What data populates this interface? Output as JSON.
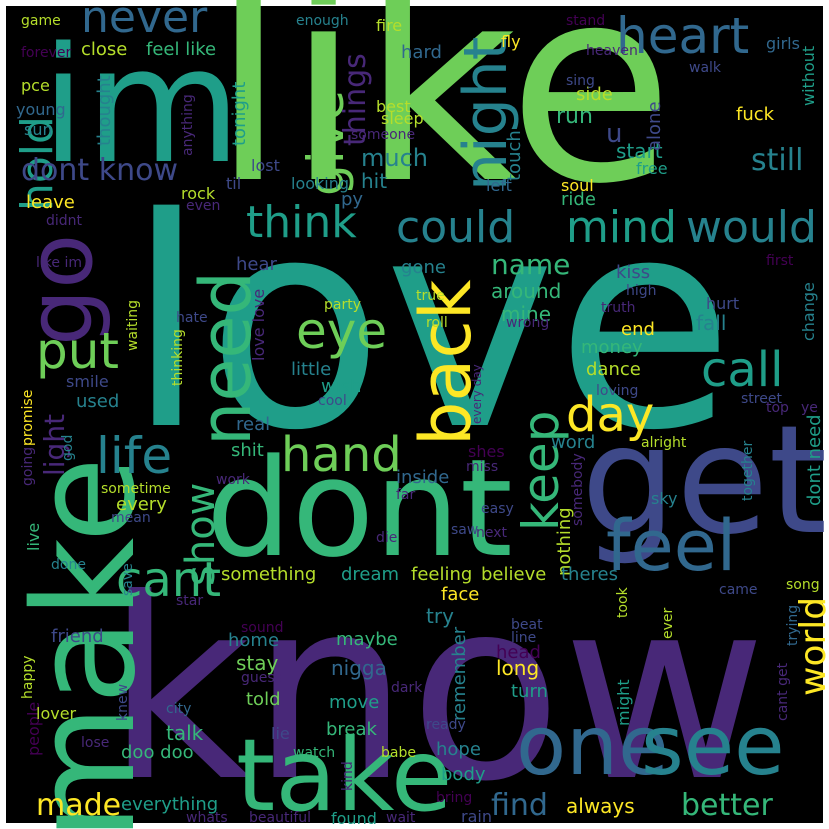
{
  "palette": {
    "background": "#000000",
    "frame": "#ffffff",
    "yellow": "#fde725",
    "lime": "#b5de2b",
    "green": "#6ece58",
    "sea": "#35b779",
    "teal": "#1f9e89",
    "cyan": "#26828e",
    "blue": "#31688e",
    "indigo": "#3e4989",
    "purple": "#482878",
    "dark": "#440154"
  },
  "words": [
    {
      "text": "love",
      "color": "teal"
    },
    {
      "text": "like",
      "color": "green"
    },
    {
      "text": "know",
      "color": "purple"
    },
    {
      "text": "im",
      "color": "teal"
    },
    {
      "text": "dont",
      "color": "sea"
    },
    {
      "text": "get",
      "color": "indigo"
    },
    {
      "text": "make",
      "color": "sea"
    },
    {
      "text": "take",
      "color": "sea"
    },
    {
      "text": "one",
      "color": "blue"
    },
    {
      "text": "see",
      "color": "cyan"
    },
    {
      "text": "need",
      "color": "sea"
    },
    {
      "text": "go",
      "color": "purple"
    },
    {
      "text": "feel",
      "color": "blue"
    },
    {
      "text": "back",
      "color": "yellow"
    },
    {
      "text": "heart",
      "color": "blue"
    },
    {
      "text": "never",
      "color": "blue"
    },
    {
      "text": "give",
      "color": "green"
    },
    {
      "text": "night",
      "color": "cyan"
    },
    {
      "text": "think",
      "color": "teal"
    },
    {
      "text": "could",
      "color": "cyan"
    },
    {
      "text": "mind",
      "color": "teal"
    },
    {
      "text": "would",
      "color": "cyan"
    },
    {
      "text": "hold",
      "color": "teal"
    },
    {
      "text": "put",
      "color": "green"
    },
    {
      "text": "eye",
      "color": "green"
    },
    {
      "text": "life",
      "color": "cyan"
    },
    {
      "text": "hand",
      "color": "green"
    },
    {
      "text": "keep",
      "color": "sea"
    },
    {
      "text": "call",
      "color": "teal"
    },
    {
      "text": "day",
      "color": "yellow"
    },
    {
      "text": "cant",
      "color": "sea"
    },
    {
      "text": "show",
      "color": "sea"
    },
    {
      "text": "world",
      "color": "yellow"
    },
    {
      "text": "things",
      "color": "purple"
    },
    {
      "text": "dont know",
      "color": "indigo"
    },
    {
      "text": "still",
      "color": "cyan"
    },
    {
      "text": "better",
      "color": "sea"
    },
    {
      "text": "find",
      "color": "blue"
    },
    {
      "text": "made",
      "color": "yellow"
    },
    {
      "text": "light",
      "color": "purple"
    },
    {
      "text": "name",
      "color": "sea"
    },
    {
      "text": "much",
      "color": "cyan"
    },
    {
      "text": "hit",
      "color": "cyan"
    },
    {
      "text": "u",
      "color": "indigo"
    },
    {
      "text": "close",
      "color": "lime"
    },
    {
      "text": "feel like",
      "color": "sea"
    },
    {
      "text": "hard",
      "color": "blue"
    },
    {
      "text": "side",
      "color": "lime"
    },
    {
      "text": "run",
      "color": "sea"
    },
    {
      "text": "leave",
      "color": "yellow"
    },
    {
      "text": "touch",
      "color": "cyan"
    },
    {
      "text": "start",
      "color": "teal"
    },
    {
      "text": "ride",
      "color": "sea"
    },
    {
      "text": "free",
      "color": "teal"
    },
    {
      "text": "soul",
      "color": "yellow"
    },
    {
      "text": "left",
      "color": "blue"
    },
    {
      "text": "py",
      "color": "blue"
    },
    {
      "text": "thought",
      "color": "cyan"
    },
    {
      "text": "tonight",
      "color": "teal"
    },
    {
      "text": "alone",
      "color": "indigo"
    },
    {
      "text": "fuck",
      "color": "yellow"
    },
    {
      "text": "best",
      "color": "lime"
    },
    {
      "text": "sleep",
      "color": "lime"
    },
    {
      "text": "someone",
      "color": "purple"
    },
    {
      "text": "pce",
      "color": "lime"
    },
    {
      "text": "young",
      "color": "blue"
    },
    {
      "text": "sun",
      "color": "cyan"
    },
    {
      "text": "anything",
      "color": "purple"
    },
    {
      "text": "lost",
      "color": "indigo"
    },
    {
      "text": "til",
      "color": "indigo"
    },
    {
      "text": "looking",
      "color": "cyan"
    },
    {
      "text": "rock",
      "color": "lime"
    },
    {
      "text": "even",
      "color": "purple"
    },
    {
      "text": "didnt",
      "color": "purple"
    },
    {
      "text": "game",
      "color": "lime"
    },
    {
      "text": "forever",
      "color": "dark"
    },
    {
      "text": "enough",
      "color": "cyan"
    },
    {
      "text": "fire",
      "color": "lime"
    },
    {
      "text": "fly",
      "color": "yellow"
    },
    {
      "text": "stand",
      "color": "dark"
    },
    {
      "text": "heaven",
      "color": "purple"
    },
    {
      "text": "sing",
      "color": "indigo"
    },
    {
      "text": "walk",
      "color": "indigo"
    },
    {
      "text": "girls",
      "color": "blue"
    },
    {
      "text": "without",
      "color": "teal"
    },
    {
      "text": "ye",
      "color": "purple"
    },
    {
      "text": "hear",
      "color": "indigo"
    },
    {
      "text": "gone",
      "color": "cyan"
    },
    {
      "text": "around",
      "color": "sea"
    },
    {
      "text": "mine",
      "color": "sea"
    },
    {
      "text": "kiss",
      "color": "indigo"
    },
    {
      "text": "high",
      "color": "indigo"
    },
    {
      "text": "first",
      "color": "dark"
    },
    {
      "text": "change",
      "color": "cyan"
    },
    {
      "text": "hurt",
      "color": "indigo"
    },
    {
      "text": "truth",
      "color": "purple"
    },
    {
      "text": "fall",
      "color": "cyan"
    },
    {
      "text": "end",
      "color": "yellow"
    },
    {
      "text": "money",
      "color": "sea"
    },
    {
      "text": "dance",
      "color": "lime"
    },
    {
      "text": "true",
      "color": "lime"
    },
    {
      "text": "roll",
      "color": "lime"
    },
    {
      "text": "wrong",
      "color": "purple"
    },
    {
      "text": "party",
      "color": "lime"
    },
    {
      "text": "love love",
      "color": "purple"
    },
    {
      "text": "little",
      "color": "cyan"
    },
    {
      "text": "wish",
      "color": "teal"
    },
    {
      "text": "smile",
      "color": "indigo"
    },
    {
      "text": "used",
      "color": "cyan"
    },
    {
      "text": "real",
      "color": "blue"
    },
    {
      "text": "shit",
      "color": "sea"
    },
    {
      "text": "cool",
      "color": "indigo"
    },
    {
      "text": "every day",
      "color": "purple"
    },
    {
      "text": "loving",
      "color": "indigo"
    },
    {
      "text": "street",
      "color": "indigo"
    },
    {
      "text": "top",
      "color": "purple"
    },
    {
      "text": "alright",
      "color": "lime"
    },
    {
      "text": "word",
      "color": "cyan"
    },
    {
      "text": "shes",
      "color": "dark"
    },
    {
      "text": "god",
      "color": "cyan"
    },
    {
      "text": "miss",
      "color": "purple"
    },
    {
      "text": "inside",
      "color": "blue"
    },
    {
      "text": "every",
      "color": "lime"
    },
    {
      "text": "sometime",
      "color": "lime"
    },
    {
      "text": "work",
      "color": "purple"
    },
    {
      "text": "far",
      "color": "purple"
    },
    {
      "text": "easy",
      "color": "indigo"
    },
    {
      "text": "sky",
      "color": "cyan"
    },
    {
      "text": "somebody",
      "color": "purple"
    },
    {
      "text": "together",
      "color": "cyan"
    },
    {
      "text": "dont need",
      "color": "teal"
    },
    {
      "text": "mean",
      "color": "indigo"
    },
    {
      "text": "die",
      "color": "purple"
    },
    {
      "text": "saw",
      "color": "indigo"
    },
    {
      "text": "next",
      "color": "purple"
    },
    {
      "text": "nothing",
      "color": "lime"
    },
    {
      "text": "live",
      "color": "sea"
    },
    {
      "text": "done",
      "color": "cyan"
    },
    {
      "text": "save",
      "color": "cyan"
    },
    {
      "text": "something",
      "color": "lime"
    },
    {
      "text": "dream",
      "color": "teal"
    },
    {
      "text": "feeling",
      "color": "lime"
    },
    {
      "text": "believe",
      "color": "lime"
    },
    {
      "text": "theres",
      "color": "cyan"
    },
    {
      "text": "face",
      "color": "yellow"
    },
    {
      "text": "try",
      "color": "cyan"
    },
    {
      "text": "came",
      "color": "indigo"
    },
    {
      "text": "song",
      "color": "lime"
    },
    {
      "text": "star",
      "color": "purple"
    },
    {
      "text": "sound",
      "color": "dark"
    },
    {
      "text": "took",
      "color": "lime"
    },
    {
      "text": "beat",
      "color": "indigo"
    },
    {
      "text": "line",
      "color": "indigo"
    },
    {
      "text": "head",
      "color": "dark"
    },
    {
      "text": "ever",
      "color": "lime"
    },
    {
      "text": "trying",
      "color": "blue"
    },
    {
      "text": "friend",
      "color": "indigo"
    },
    {
      "text": "home",
      "color": "cyan"
    },
    {
      "text": "maybe",
      "color": "sea"
    },
    {
      "text": "stay",
      "color": "green"
    },
    {
      "text": "nigga",
      "color": "blue"
    },
    {
      "text": "long",
      "color": "yellow"
    },
    {
      "text": "happy",
      "color": "lime"
    },
    {
      "text": "guess",
      "color": "purple"
    },
    {
      "text": "dark",
      "color": "purple"
    },
    {
      "text": "remember",
      "color": "cyan"
    },
    {
      "text": "turn",
      "color": "teal"
    },
    {
      "text": "might",
      "color": "teal"
    },
    {
      "text": "cant get",
      "color": "purple"
    },
    {
      "text": "told",
      "color": "green"
    },
    {
      "text": "move",
      "color": "teal"
    },
    {
      "text": "people",
      "color": "dark"
    },
    {
      "text": "lover",
      "color": "lime"
    },
    {
      "text": "knew",
      "color": "indigo"
    },
    {
      "text": "city",
      "color": "blue"
    },
    {
      "text": "talk",
      "color": "sea"
    },
    {
      "text": "break",
      "color": "sea"
    },
    {
      "text": "lie",
      "color": "indigo"
    },
    {
      "text": "lose",
      "color": "purple"
    },
    {
      "text": "ready",
      "color": "indigo"
    },
    {
      "text": "hope",
      "color": "cyan"
    },
    {
      "text": "watch",
      "color": "sea"
    },
    {
      "text": "babe",
      "color": "lime"
    },
    {
      "text": "body",
      "color": "teal"
    },
    {
      "text": "doo doo",
      "color": "sea"
    },
    {
      "text": "everything",
      "color": "teal"
    },
    {
      "text": "kind",
      "color": "purple"
    },
    {
      "text": "bring",
      "color": "dark"
    },
    {
      "text": "rain",
      "color": "indigo"
    },
    {
      "text": "whats",
      "color": "purple"
    },
    {
      "text": "beautiful",
      "color": "purple"
    },
    {
      "text": "found",
      "color": "teal"
    },
    {
      "text": "wait",
      "color": "purple"
    },
    {
      "text": "always",
      "color": "yellow"
    },
    {
      "text": "promise",
      "color": "yellow"
    },
    {
      "text": "going",
      "color": "purple"
    },
    {
      "text": "waiting",
      "color": "lime"
    },
    {
      "text": "thinking",
      "color": "lime"
    },
    {
      "text": "hate",
      "color": "indigo"
    },
    {
      "text": "like im",
      "color": "purple"
    }
  ]
}
